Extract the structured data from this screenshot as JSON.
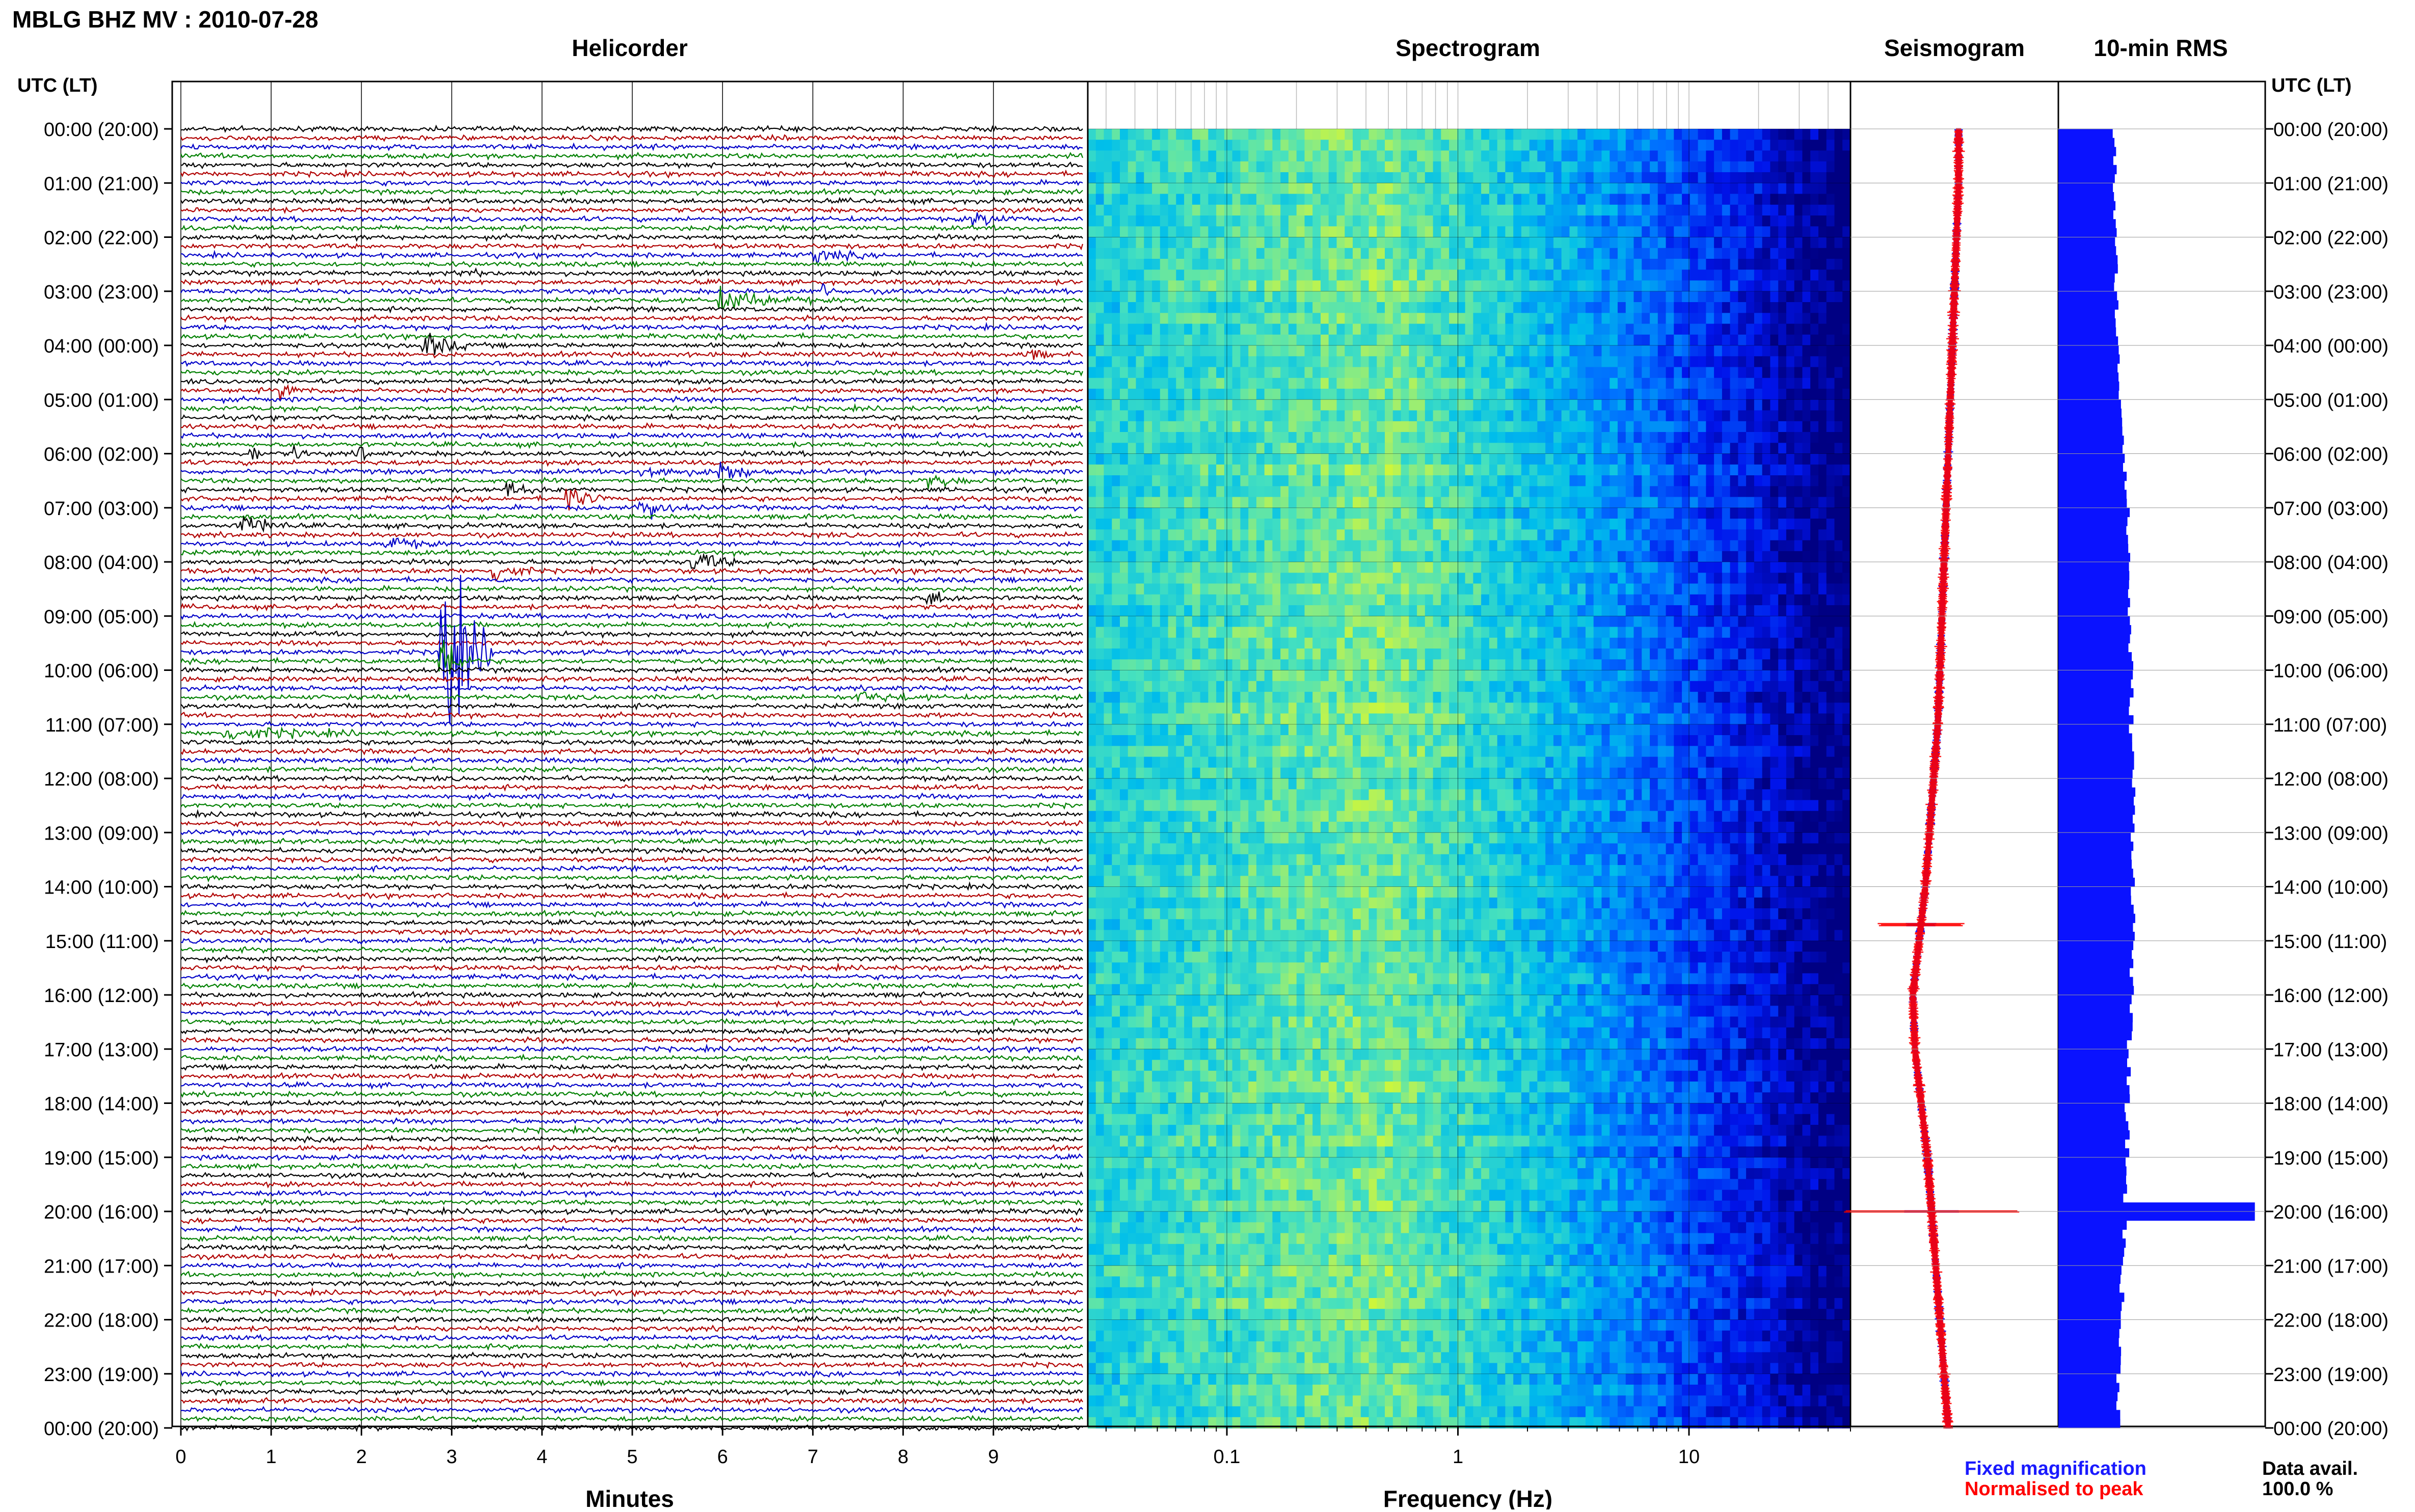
{
  "page_title": "MBLG BHZ MV : 2010-07-28",
  "panels": {
    "helicorder": "Helicorder",
    "spectrogram": "Spectrogram",
    "seismogram": "Seismogram",
    "rms": "10-min RMS"
  },
  "time_axis_title": "UTC (LT)",
  "colors": {
    "trace_cycle": [
      "#000000",
      "#b00000",
      "#0000c8",
      "#008000"
    ],
    "fixed": "#1a1aff",
    "normalised": "#ff0000",
    "rms_bar": "#0a12ff"
  },
  "legend": {
    "fixed": "Fixed magnification",
    "normalised": "Normalised to peak",
    "avail_label": "Data avail.",
    "avail_value": "100.0 %"
  },
  "chart_data": [
    {
      "type": "line",
      "title": "Helicorder",
      "xlabel": "Minutes",
      "x_ticks": [
        0,
        1,
        2,
        3,
        4,
        5,
        6,
        7,
        8,
        9
      ],
      "xlim": [
        0,
        10
      ],
      "ylim_hours_utc": [
        0,
        24
      ],
      "lines_per_hour": 6,
      "y_tick_labels": [
        "00:00 (20:00)",
        "01:00 (21:00)",
        "02:00 (22:00)",
        "03:00 (23:00)",
        "04:00 (00:00)",
        "05:00 (01:00)",
        "06:00 (02:00)",
        "07:00 (03:00)",
        "08:00 (04:00)",
        "09:00 (05:00)",
        "10:00 (06:00)",
        "11:00 (07:00)",
        "12:00 (08:00)",
        "13:00 (09:00)",
        "14:00 (10:00)",
        "15:00 (11:00)",
        "16:00 (12:00)",
        "17:00 (13:00)",
        "18:00 (14:00)",
        "19:00 (15:00)",
        "20:00 (16:00)",
        "21:00 (17:00)",
        "22:00 (18:00)",
        "23:00 (19:00)",
        "00:00 (20:00)"
      ],
      "events": [
        {
          "line": 10,
          "minute": 8.8,
          "amp": 0.5,
          "dur": 0.5
        },
        {
          "line": 14,
          "minute": 7.0,
          "amp": 0.5,
          "dur": 0.6
        },
        {
          "line": 16,
          "minute": 3.1,
          "amp": 0.4,
          "dur": 0.3
        },
        {
          "line": 18,
          "minute": 7.1,
          "amp": 0.5,
          "dur": 0.3
        },
        {
          "line": 19,
          "minute": 6.0,
          "amp": 0.8,
          "dur": 1.0
        },
        {
          "line": 24,
          "minute": 2.7,
          "amp": 1.0,
          "dur": 0.5
        },
        {
          "line": 25,
          "minute": 9.4,
          "amp": 0.4,
          "dur": 0.3
        },
        {
          "line": 29,
          "minute": 1.1,
          "amp": 0.5,
          "dur": 0.5
        },
        {
          "line": 36,
          "minute": 0.8,
          "amp": 0.8,
          "dur": 0.1
        },
        {
          "line": 36,
          "minute": 1.3,
          "amp": 0.7,
          "dur": 0.1
        },
        {
          "line": 36,
          "minute": 2.0,
          "amp": 0.9,
          "dur": 0.1
        },
        {
          "line": 38,
          "minute": 6.0,
          "amp": 1.0,
          "dur": 0.4
        },
        {
          "line": 38,
          "minute": 5.1,
          "amp": 0.5,
          "dur": 0.8
        },
        {
          "line": 39,
          "minute": 8.3,
          "amp": 0.6,
          "dur": 0.4
        },
        {
          "line": 40,
          "minute": 3.6,
          "amp": 0.6,
          "dur": 0.4
        },
        {
          "line": 41,
          "minute": 4.3,
          "amp": 0.9,
          "dur": 0.4
        },
        {
          "line": 42,
          "minute": 5.2,
          "amp": 1.0,
          "dur": 0.2
        },
        {
          "line": 42,
          "minute": 5.1,
          "amp": 0.4,
          "dur": 0.6
        },
        {
          "line": 44,
          "minute": 0.7,
          "amp": 1.0,
          "dur": 0.5
        },
        {
          "line": 46,
          "minute": 2.3,
          "amp": 0.6,
          "dur": 0.5
        },
        {
          "line": 48,
          "minute": 5.7,
          "amp": 0.8,
          "dur": 0.5
        },
        {
          "line": 49,
          "minute": 3.5,
          "amp": 0.9,
          "dur": 0.4
        },
        {
          "line": 52,
          "minute": 8.3,
          "amp": 0.6,
          "dur": 0.4
        },
        {
          "line": 58,
          "minute": 2.9,
          "amp": 8.0,
          "dur": 0.6
        },
        {
          "line": 59,
          "minute": 2.9,
          "amp": 3.0,
          "dur": 0.3
        },
        {
          "line": 63,
          "minute": 7.5,
          "amp": 0.4,
          "dur": 0.8
        },
        {
          "line": 67,
          "minute": 0.5,
          "amp": 0.5,
          "dur": 1.5
        }
      ]
    },
    {
      "type": "heatmap",
      "title": "Spectrogram",
      "xlabel": "Frequency (Hz)",
      "x_scale": "log",
      "xlim": [
        0.025,
        50
      ],
      "x_tick_values": [
        0.1,
        1,
        10
      ],
      "x_tick_labels": [
        "0.1",
        "1",
        "10"
      ],
      "peak_frequency_hz": 0.45
    },
    {
      "type": "line",
      "title": "Seismogram",
      "series": [
        {
          "name": "Fixed magnification",
          "color": "#1a1aff"
        },
        {
          "name": "Normalised to peak",
          "color": "#ff0000"
        }
      ],
      "center_by_hour": [
        0.52,
        0.52,
        0.51,
        0.5,
        0.49,
        0.48,
        0.47,
        0.46,
        0.45,
        0.44,
        0.43,
        0.42,
        0.4,
        0.38,
        0.36,
        0.33,
        0.3,
        0.31,
        0.34,
        0.37,
        0.39,
        0.41,
        0.43,
        0.45,
        0.47
      ]
    },
    {
      "type": "bar",
      "title": "10-min RMS",
      "orientation": "horizontal",
      "xlim": [
        0,
        1
      ],
      "values_by_hour": [
        0.27,
        0.27,
        0.27,
        0.28,
        0.28,
        0.3,
        0.32,
        0.33,
        0.34,
        0.34,
        0.35,
        0.35,
        0.36,
        0.36,
        0.36,
        0.36,
        0.35,
        0.34,
        0.33,
        0.33,
        0.32,
        0.31,
        0.3,
        0.29,
        0.29
      ],
      "spike": {
        "hour": 20.0,
        "value": 0.95
      }
    }
  ]
}
